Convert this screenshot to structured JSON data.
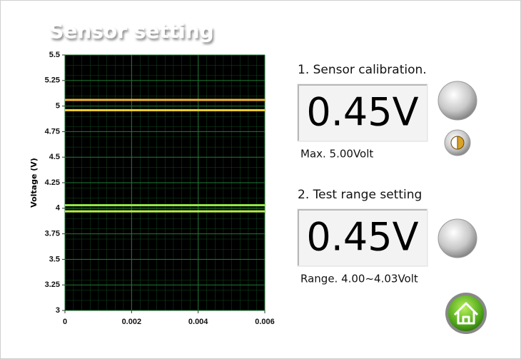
{
  "header": {
    "title": "Sensor setting"
  },
  "chart_data": {
    "type": "line",
    "y_label": "Voltage (V)",
    "x": [
      0,
      0.006
    ],
    "series": [
      {
        "color": "#f2b431",
        "values": [
          5.06,
          5.06
        ]
      },
      {
        "color": "#f2d431",
        "values": [
          4.96,
          4.96
        ]
      },
      {
        "color": "#8ee842",
        "values": [
          4.03,
          4.03
        ]
      },
      {
        "color": "#b4f042",
        "values": [
          3.97,
          3.97
        ]
      }
    ],
    "xlim": [
      0,
      0.006
    ],
    "xticks": [
      0,
      0.002,
      0.004,
      0.006
    ],
    "ylim": [
      3,
      5.5
    ],
    "yticks": [
      3,
      3.25,
      3.5,
      3.75,
      4,
      4.25,
      4.5,
      4.75,
      5,
      5.25,
      5.5
    ],
    "grid": true
  },
  "calibration": {
    "label": "1. Sensor calibration.",
    "display": "0.45V",
    "note": "Max. 5.00Volt"
  },
  "test_range": {
    "label": "2. Test range setting",
    "display": "0.45V",
    "note": "Range. 4.00~4.03Volt"
  }
}
